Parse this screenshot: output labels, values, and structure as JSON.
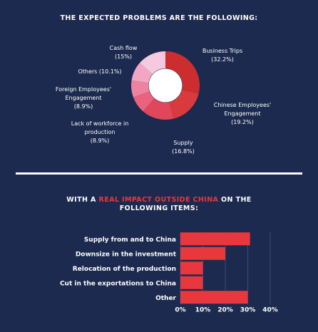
{
  "heading_top": "THE EXPECTED PROBLEMS ARE THE FOLLOWING:",
  "heading_bottom": {
    "pre": "WITH A ",
    "accent": "REAL IMPACT OUTSIDE CHINA",
    "post": " ON THE",
    "line2": "FOLLOWING ITEMS:"
  },
  "colors": {
    "background": "#1c2a4f",
    "accent": "#e8383d",
    "bar": "#e8383d"
  },
  "chart_data": [
    {
      "type": "pie",
      "title": "",
      "slices": [
        {
          "label_lines": [
            "Business Trips",
            "(32.2%)"
          ],
          "value": 32.2,
          "color": "#cc2e2f"
        },
        {
          "label_lines": [
            "Chinese Employees'",
            "Engagement",
            "(19.2%)"
          ],
          "value": 19.2,
          "color": "#d93a3d"
        },
        {
          "label_lines": [
            "Supply",
            "(16.8%)"
          ],
          "value": 16.8,
          "color": "#e0475a"
        },
        {
          "label_lines": [
            "Lack of workforce in",
            "production",
            "(8.9%)"
          ],
          "value": 8.9,
          "color": "#e9637f"
        },
        {
          "label_lines": [
            "Foreign Employees'",
            "Engagement",
            "(8.9%)"
          ],
          "value": 8.9,
          "color": "#ee82a1"
        },
        {
          "label_lines": [
            "Others (10.1%)"
          ],
          "value": 10.1,
          "color": "#f3a5c4"
        },
        {
          "label_lines": [
            "Cash flow",
            "(15%)"
          ],
          "value": 15,
          "color": "#f7c9e0"
        }
      ]
    },
    {
      "type": "bar",
      "orientation": "horizontal",
      "categories": [
        "Supply from and to China",
        "Downsize in the investment",
        "Relocation of the production",
        "Cut in the exportations to China",
        "Other"
      ],
      "values": [
        31,
        20,
        10,
        10,
        30
      ],
      "xlim": [
        0,
        40
      ],
      "xticks": [
        "0%",
        "10%",
        "20%",
        "30%",
        "40%"
      ],
      "grid": true
    }
  ]
}
